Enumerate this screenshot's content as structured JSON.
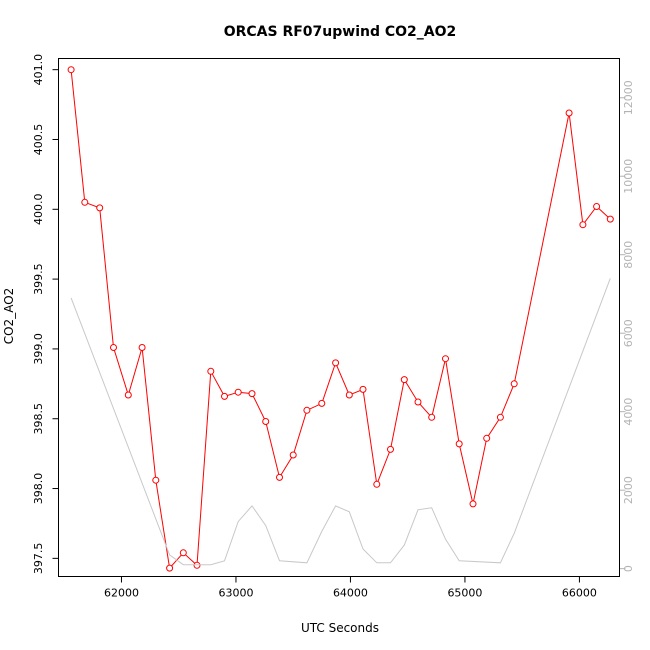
{
  "chart_data": {
    "type": "line",
    "title": "ORCAS RF07upwind CO2_AO2",
    "xlabel": "UTC Seconds",
    "ylabel": "CO2_AO2",
    "xlim": [
      61450,
      66350
    ],
    "ylim": [
      397.37,
      401.08
    ],
    "y2lim": [
      -200,
      13000
    ],
    "x_ticks": [
      62000,
      63000,
      64000,
      65000,
      66000
    ],
    "x_tick_labels": [
      "62000",
      "63000",
      "64000",
      "65000",
      "66000"
    ],
    "y_ticks": [
      397.5,
      398.0,
      398.5,
      399.0,
      399.5,
      400.0,
      400.5,
      401.0
    ],
    "y_tick_labels": [
      "397.5",
      "398.0",
      "398.5",
      "399.0",
      "399.5",
      "400.0",
      "400.5",
      "401.0"
    ],
    "y2_ticks": [
      0,
      2000,
      4000,
      6000,
      8000,
      10000,
      12000
    ],
    "y2_tick_labels": [
      "0",
      "2000",
      "4000",
      "6000",
      "8000",
      "10000",
      "12000"
    ],
    "colors": {
      "co2": "#ff0000",
      "secondary": "#c8c8c8",
      "right_axis": "#b3b3b3"
    },
    "series": [
      {
        "axis": "left",
        "style": "line+circle",
        "x": [
          61560,
          61680,
          61810,
          61930,
          62060,
          62180,
          62300,
          62420,
          62540,
          62660,
          62780,
          62900,
          63020,
          63140,
          63260,
          63380,
          63500,
          63620,
          63750,
          63870,
          63990,
          64110,
          64230,
          64350,
          64470,
          64590,
          64710,
          64830,
          64950,
          65070,
          65190,
          65310,
          65430,
          65910,
          66030,
          66150,
          66270
        ],
        "values": [
          401.0,
          400.05,
          400.01,
          399.01,
          398.67,
          399.01,
          398.06,
          397.43,
          397.54,
          397.45,
          398.84,
          398.66,
          398.69,
          398.68,
          398.48,
          398.08,
          398.24,
          398.56,
          398.61,
          398.9,
          398.67,
          398.71,
          398.03,
          398.28,
          398.78,
          398.62,
          398.51,
          398.93,
          398.32,
          397.89,
          398.36,
          398.51,
          398.75,
          400.69,
          399.89,
          400.02,
          399.93
        ]
      },
      {
        "axis": "right",
        "style": "line",
        "x": [
          61560,
          62420,
          62540,
          62660,
          62780,
          62900,
          63020,
          63140,
          63260,
          63380,
          63620,
          63750,
          63870,
          63990,
          64110,
          64230,
          64350,
          64470,
          64590,
          64710,
          64830,
          64950,
          65310,
          65430,
          66270
        ],
        "values": [
          6900,
          350,
          100,
          100,
          100,
          200,
          1200,
          1600,
          1100,
          200,
          150,
          950,
          1600,
          1450,
          500,
          150,
          150,
          600,
          1500,
          1550,
          750,
          200,
          150,
          900,
          7400
        ]
      }
    ]
  }
}
